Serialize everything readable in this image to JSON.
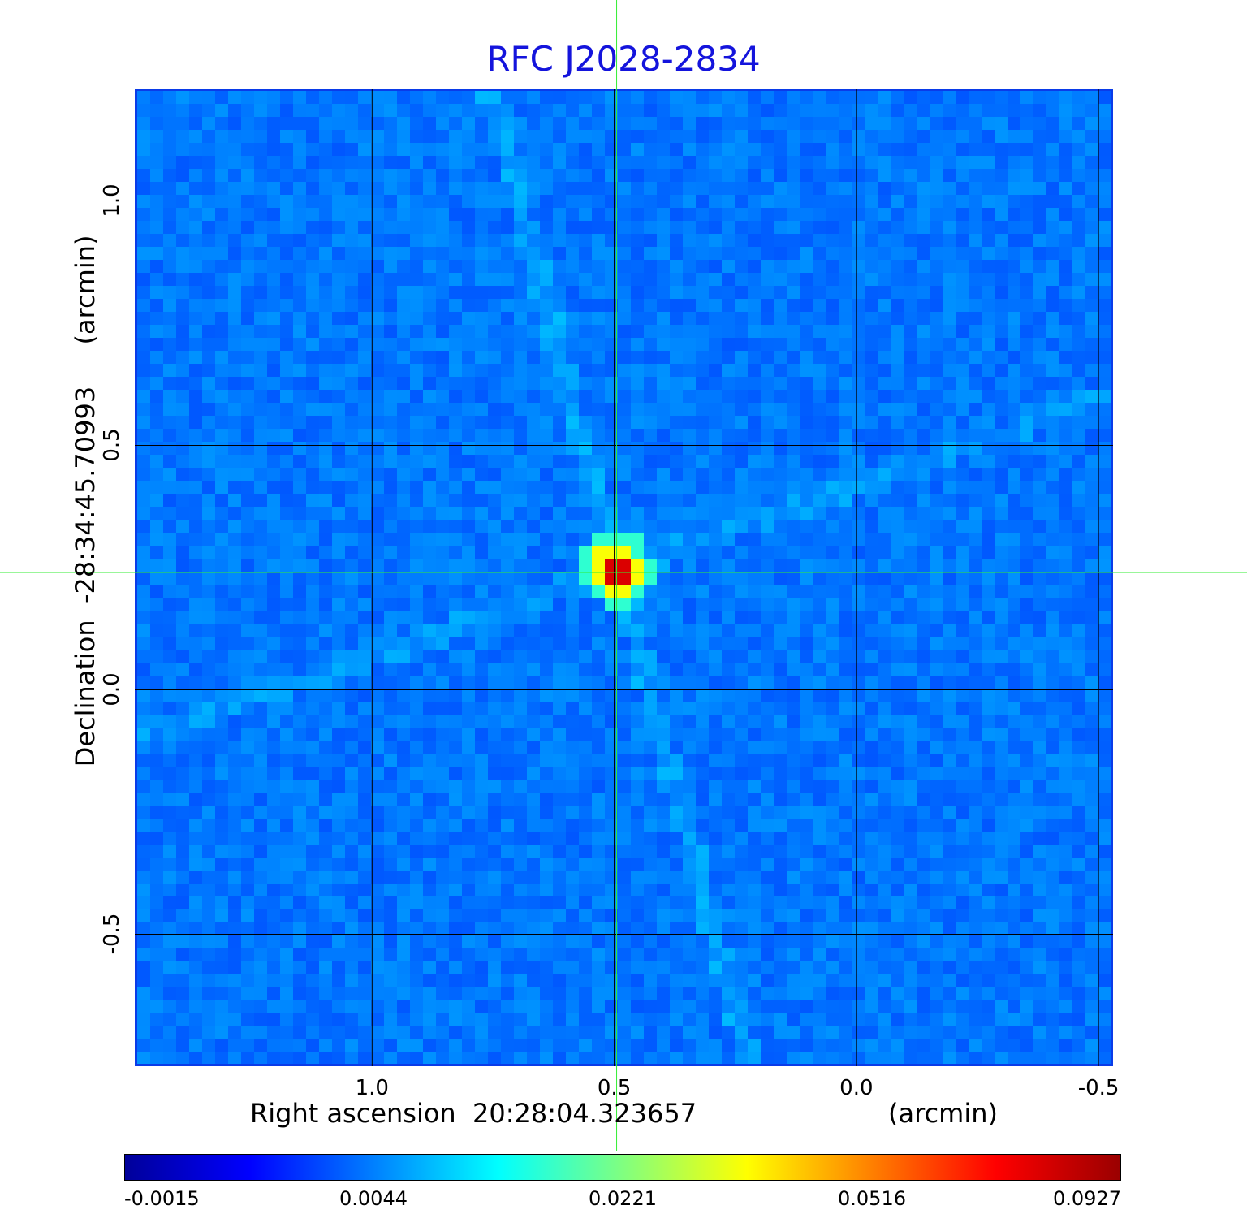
{
  "chart_data": {
    "type": "heatmap",
    "title": "RFC J2028-2834",
    "xlabel": "Right ascension  20:28:04.323657",
    "xunit": "(arcmin)",
    "ylabel": "Declination  -28:34:45.70993",
    "yunit": "(arcmin)",
    "xlim": [
      1.49,
      -0.53
    ],
    "ylim": [
      -0.77,
      1.23
    ],
    "x_ticks": [
      1.0,
      0.5,
      0.0,
      -0.5
    ],
    "x_tick_labels": [
      "1.0",
      "0.5",
      "0.0",
      "-0.5"
    ],
    "y_ticks": [
      1.0,
      0.5,
      0.0,
      -0.5
    ],
    "y_tick_labels": [
      "1.0",
      "0.5",
      "0.0",
      "-0.5"
    ],
    "grid": true,
    "peak": {
      "x": 0.495,
      "y": 0.245,
      "value": 0.0927
    },
    "crosshair": {
      "x": 0.495,
      "y": 0.24
    },
    "colorbar": {
      "ticks": [
        "-0.0015",
        "0.0044",
        "0.0221",
        "0.0516",
        "0.0927"
      ],
      "colormap": [
        "#00009a",
        "#0000ff",
        "#0080ff",
        "#00ffff",
        "#80ff80",
        "#ffff00",
        "#ff8000",
        "#ff0000",
        "#9a0000"
      ]
    },
    "colors": {
      "background": "#1a4ff2",
      "title": "#1414dc",
      "grid": "#000000",
      "crosshair": "#33ee33",
      "frame": "#0a3be8"
    }
  }
}
